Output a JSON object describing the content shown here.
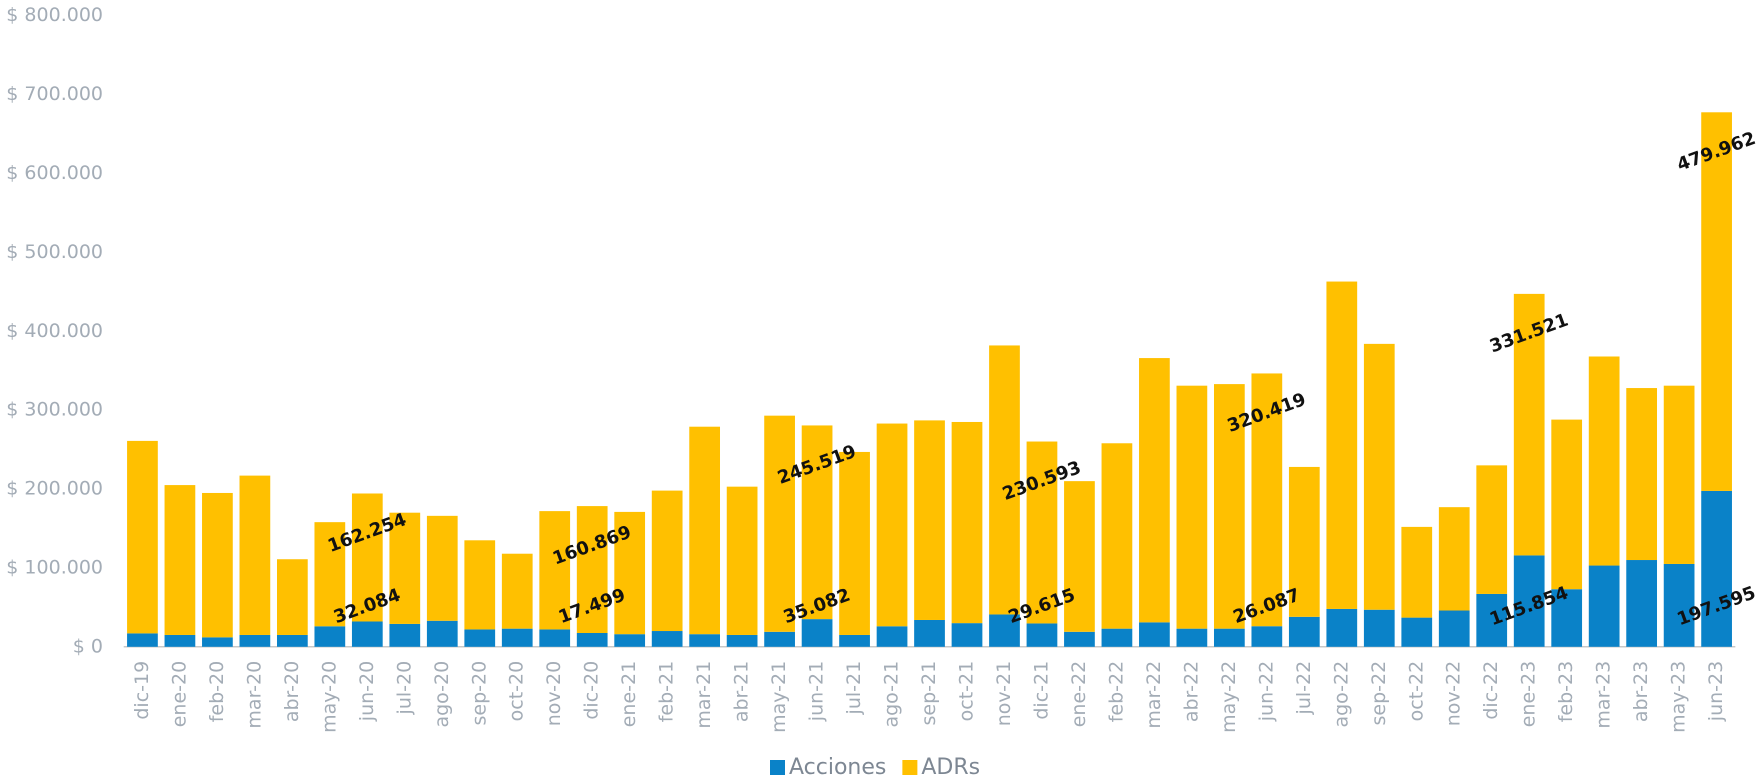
{
  "chart_data": {
    "type": "bar",
    "stacked": true,
    "categories": [
      "dic-19",
      "ene-20",
      "feb-20",
      "mar-20",
      "abr-20",
      "may-20",
      "jun-20",
      "jul-20",
      "ago-20",
      "sep-20",
      "oct-20",
      "nov-20",
      "dic-20",
      "ene-21",
      "feb-21",
      "mar-21",
      "abr-21",
      "may-21",
      "jun-21",
      "jul-21",
      "ago-21",
      "sep-21",
      "oct-21",
      "nov-21",
      "dic-21",
      "ene-22",
      "feb-22",
      "mar-22",
      "abr-22",
      "may-22",
      "jun-22",
      "jul-22",
      "ago-22",
      "sep-22",
      "oct-22",
      "nov-22",
      "dic-22",
      "ene-23",
      "feb-23",
      "mar-23",
      "abr-23",
      "may-23",
      "jun-23"
    ],
    "series": [
      {
        "name": "Acciones",
        "color": "#0a82c8",
        "values": [
          17000,
          15000,
          12000,
          15000,
          15000,
          26000,
          32084,
          29000,
          33000,
          22000,
          23000,
          22000,
          17499,
          16000,
          20000,
          16000,
          15000,
          19000,
          35082,
          15000,
          26000,
          34000,
          30000,
          41000,
          29615,
          19000,
          23000,
          31000,
          23000,
          23000,
          26087,
          38000,
          48000,
          47000,
          37000,
          46000,
          67000,
          115854,
          73000,
          103000,
          110000,
          105000,
          197595
        ],
        "value_labels": [
          null,
          null,
          null,
          null,
          null,
          null,
          "32.084",
          null,
          null,
          null,
          null,
          null,
          "17.499",
          null,
          null,
          null,
          null,
          null,
          "35.082",
          null,
          null,
          null,
          null,
          null,
          "29.615",
          null,
          null,
          null,
          null,
          null,
          "26.087",
          null,
          null,
          null,
          null,
          null,
          null,
          "115.854",
          null,
          null,
          null,
          null,
          "197.595"
        ]
      },
      {
        "name": "ADRs",
        "color": "#ffc000",
        "values": [
          244000,
          190000,
          183000,
          202000,
          96000,
          132000,
          162254,
          141000,
          133000,
          113000,
          95000,
          150000,
          160869,
          155000,
          178000,
          263000,
          188000,
          274000,
          245519,
          232000,
          257000,
          253000,
          255000,
          341000,
          230593,
          191000,
          235000,
          335000,
          308000,
          310000,
          320419,
          190000,
          415000,
          337000,
          115000,
          131000,
          163000,
          331521,
          215000,
          265000,
          218000,
          226000,
          479962
        ],
        "value_labels": [
          null,
          null,
          null,
          null,
          null,
          null,
          "162.254",
          null,
          null,
          null,
          null,
          null,
          "160.869",
          null,
          null,
          null,
          null,
          null,
          "245.519",
          null,
          null,
          null,
          null,
          null,
          "230.593",
          null,
          null,
          null,
          null,
          null,
          "320.419",
          null,
          null,
          null,
          null,
          null,
          null,
          "331.521",
          null,
          null,
          null,
          null,
          "479.962"
        ]
      }
    ],
    "ylim": [
      0,
      800000
    ],
    "yticks": [
      {
        "value": 0,
        "label": "$ 0"
      },
      {
        "value": 100000,
        "label": "$ 100.000"
      },
      {
        "value": 200000,
        "label": "$ 200.000"
      },
      {
        "value": 300000,
        "label": "$ 300.000"
      },
      {
        "value": 400000,
        "label": "$ 400.000"
      },
      {
        "value": 500000,
        "label": "$ 500.000"
      },
      {
        "value": 600000,
        "label": "$ 600.000"
      },
      {
        "value": 700000,
        "label": "$ 700.000"
      },
      {
        "value": 800000,
        "label": "$ 800.000"
      }
    ],
    "grid": false,
    "legend": "bottom"
  }
}
